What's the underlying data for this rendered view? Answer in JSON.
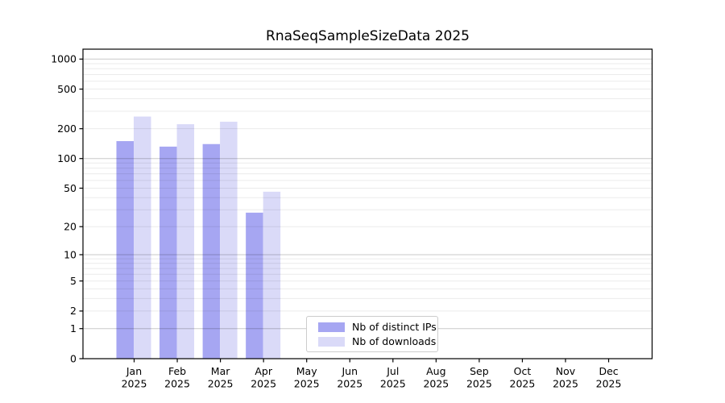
{
  "chart_data": {
    "type": "bar",
    "title": "RnaSeqSampleSizeData 2025",
    "categories": [
      "Jan",
      "Feb",
      "Mar",
      "Apr",
      "May",
      "Jun",
      "Jul",
      "Aug",
      "Sep",
      "Oct",
      "Nov",
      "Dec"
    ],
    "x_tick_year": "2025",
    "series": [
      {
        "name": "Nb of distinct IPs",
        "color": "#a6a6f2",
        "values": [
          150,
          132,
          140,
          28,
          0,
          0,
          0,
          0,
          0,
          0,
          0,
          0
        ]
      },
      {
        "name": "Nb of downloads",
        "color": "#dadaf8",
        "values": [
          265,
          222,
          235,
          46,
          0,
          0,
          0,
          0,
          0,
          0,
          0,
          0
        ]
      }
    ],
    "y_ticks": [
      0,
      1,
      2,
      5,
      10,
      20,
      50,
      100,
      200,
      500,
      1000
    ],
    "yscale": "log1p",
    "ylim": [
      0,
      1250
    ],
    "xlabel": "",
    "ylabel": "",
    "grid": true,
    "legend_position": "lower-center"
  },
  "colors": {
    "background": "#ffffff",
    "bar_distinct_ips": "#a6a6f2",
    "bar_downloads": "#dadaf8",
    "grid_major": "#c9c9c9",
    "grid_minor": "#ebebeb",
    "axis": "#000000"
  }
}
